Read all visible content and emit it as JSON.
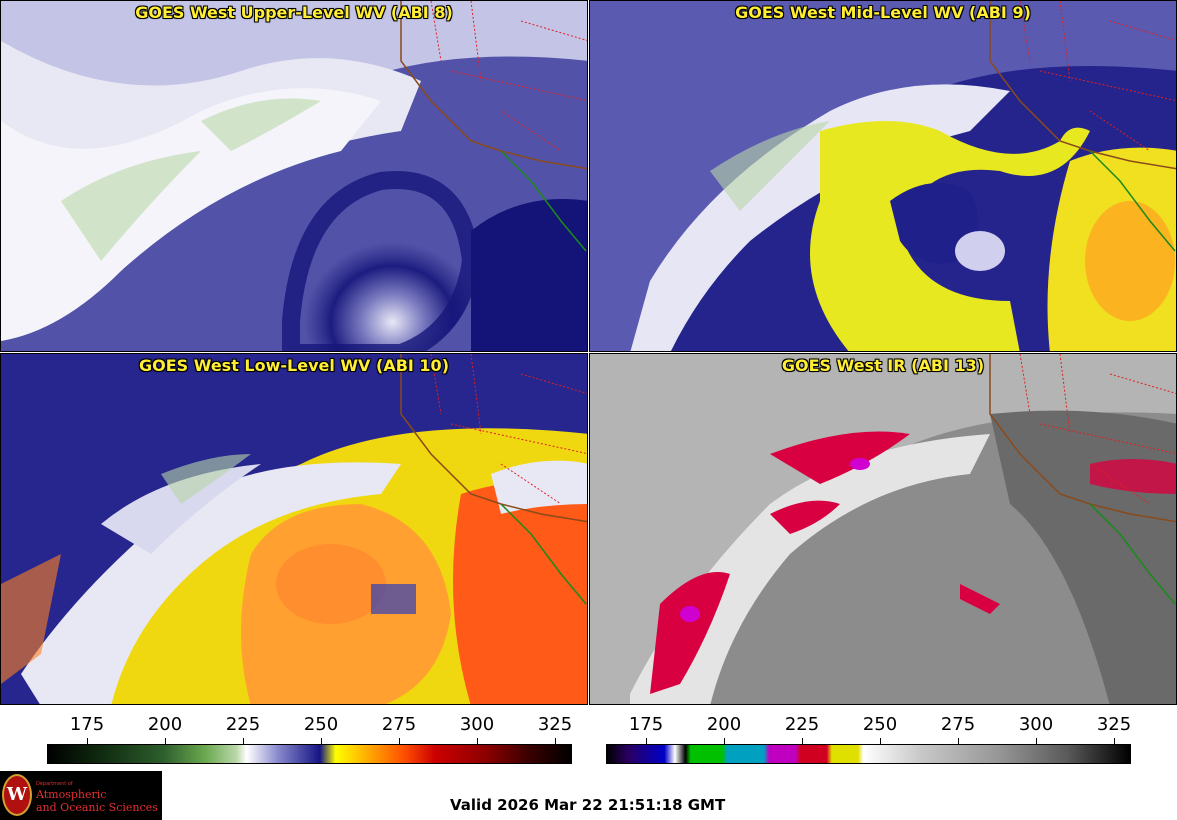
{
  "panels": [
    {
      "title": "GOES West Upper-Level WV (ABI 8)"
    },
    {
      "title": "GOES West Mid-Level WV (ABI 9)"
    },
    {
      "title": "GOES West Low-Level WV (ABI 10)"
    },
    {
      "title": "GOES West IR (ABI 13)"
    }
  ],
  "colorbars": [
    {
      "ticks": [
        "175",
        "200",
        "225",
        "250",
        "275",
        "300",
        "325"
      ]
    },
    {
      "ticks": [
        "175",
        "200",
        "225",
        "250",
        "275",
        "300",
        "325"
      ]
    }
  ],
  "logo": {
    "dept": "Department of",
    "line1": "Atmospheric",
    "line2": "and Oceanic Sciences",
    "seal_letter": "W"
  },
  "valid_time": "Valid 2026 Mar 22 21:51:18 GMT",
  "colors": {
    "title_text": "#ffee33",
    "logo_red": "#e03030"
  }
}
